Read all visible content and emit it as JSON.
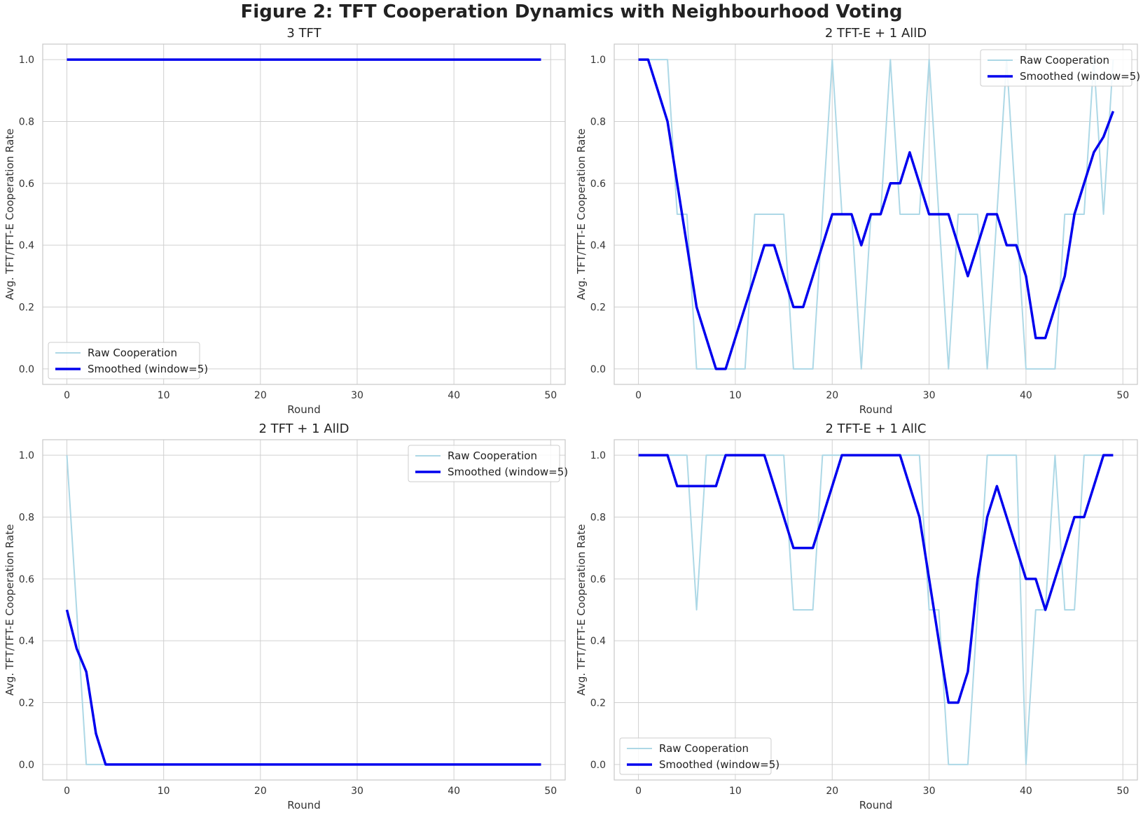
{
  "figure": {
    "title": "Figure 2: TFT Cooperation Dynamics with Neighbourhood Voting"
  },
  "colors": {
    "raw": "#add8e6",
    "smoothed": "#0000ee",
    "grid": "#d0d0d0",
    "frame": "#c8c8c8"
  },
  "chart_data": [
    {
      "type": "line",
      "title": "3 TFT",
      "xlabel": "Round",
      "ylabel": "Avg. TFT/TFT-E Cooperation Rate",
      "xlim": [
        -2.5,
        51.5
      ],
      "ylim": [
        -0.05,
        1.05
      ],
      "xticks": [
        0,
        10,
        20,
        30,
        40,
        50
      ],
      "yticks": [
        0.0,
        0.2,
        0.4,
        0.6,
        0.8,
        1.0
      ],
      "grid": true,
      "legend_position": "lower-left",
      "series": [
        {
          "name": "Raw Cooperation",
          "x": [
            0,
            49
          ],
          "y": [
            1.0,
            1.0
          ]
        },
        {
          "name": "Smoothed (window=5)",
          "x": [
            0,
            49
          ],
          "y": [
            1.0,
            1.0
          ]
        }
      ]
    },
    {
      "type": "line",
      "title": "2 TFT-E + 1 AllD",
      "xlabel": "Round",
      "ylabel": "Avg. TFT/TFT-E Cooperation Rate",
      "xlim": [
        -2.5,
        51.5
      ],
      "ylim": [
        -0.05,
        1.05
      ],
      "xticks": [
        0,
        10,
        20,
        30,
        40,
        50
      ],
      "yticks": [
        0.0,
        0.2,
        0.4,
        0.6,
        0.8,
        1.0
      ],
      "grid": true,
      "legend_position": "upper-right",
      "series": [
        {
          "name": "Raw Cooperation",
          "x": [
            0,
            1,
            2,
            3,
            4,
            5,
            6,
            7,
            8,
            9,
            10,
            11,
            12,
            13,
            14,
            15,
            16,
            17,
            18,
            19,
            20,
            21,
            22,
            23,
            24,
            25,
            26,
            27,
            28,
            29,
            30,
            31,
            32,
            33,
            34,
            35,
            36,
            37,
            38,
            39,
            40,
            41,
            42,
            43,
            44,
            45,
            46,
            47,
            48,
            49
          ],
          "y": [
            1,
            1,
            1,
            1,
            0.5,
            0.5,
            0,
            0,
            0,
            0,
            0,
            0,
            0.5,
            0.5,
            0.5,
            0.5,
            0,
            0,
            0,
            0.5,
            1,
            0.5,
            0.5,
            0,
            0.5,
            0.5,
            1,
            0.5,
            0.5,
            0.5,
            1,
            0.5,
            0,
            0.5,
            0.5,
            0.5,
            0,
            0.5,
            1,
            0.5,
            0,
            0,
            0,
            0,
            0.5,
            0.5,
            0.5,
            1,
            0.5,
            1
          ]
        },
        {
          "name": "Smoothed (window=5)",
          "x": [
            0,
            1,
            2,
            3,
            4,
            5,
            6,
            7,
            8,
            9,
            10,
            11,
            12,
            13,
            14,
            15,
            16,
            17,
            18,
            19,
            20,
            21,
            22,
            23,
            24,
            25,
            26,
            27,
            28,
            29,
            30,
            31,
            32,
            33,
            34,
            35,
            36,
            37,
            38,
            39,
            40,
            41,
            42,
            43,
            44,
            45,
            46,
            47,
            48,
            49
          ],
          "y": [
            1.0,
            1.0,
            0.9,
            0.8,
            0.6,
            0.4,
            0.2,
            0.1,
            0.0,
            0.0,
            0.1,
            0.2,
            0.3,
            0.4,
            0.4,
            0.3,
            0.2,
            0.2,
            0.3,
            0.4,
            0.5,
            0.5,
            0.5,
            0.4,
            0.5,
            0.5,
            0.6,
            0.6,
            0.7,
            0.6,
            0.5,
            0.5,
            0.5,
            0.4,
            0.3,
            0.4,
            0.5,
            0.5,
            0.4,
            0.4,
            0.3,
            0.1,
            0.1,
            0.2,
            0.3,
            0.5,
            0.6,
            0.7,
            0.75,
            0.833
          ]
        }
      ]
    },
    {
      "type": "line",
      "title": "2 TFT + 1 AllD",
      "xlabel": "Round",
      "ylabel": "Avg. TFT/TFT-E Cooperation Rate",
      "xlim": [
        -2.5,
        51.5
      ],
      "ylim": [
        -0.05,
        1.05
      ],
      "xticks": [
        0,
        10,
        20,
        30,
        40,
        50
      ],
      "yticks": [
        0.0,
        0.2,
        0.4,
        0.6,
        0.8,
        1.0
      ],
      "grid": true,
      "legend_position": "upper-right",
      "series": [
        {
          "name": "Raw Cooperation",
          "x": [
            0,
            1,
            2,
            49
          ],
          "y": [
            1.0,
            0.5,
            0.0,
            0.0
          ]
        },
        {
          "name": "Smoothed (window=5)",
          "x": [
            0,
            1,
            2,
            3,
            4,
            49
          ],
          "y": [
            0.5,
            0.375,
            0.3,
            0.1,
            0.0,
            0.0
          ]
        }
      ]
    },
    {
      "type": "line",
      "title": "2 TFT-E + 1 AllC",
      "xlabel": "Round",
      "ylabel": "Avg. TFT/TFT-E Cooperation Rate",
      "xlim": [
        -2.5,
        51.5
      ],
      "ylim": [
        -0.05,
        1.05
      ],
      "xticks": [
        0,
        10,
        20,
        30,
        40,
        50
      ],
      "yticks": [
        0.0,
        0.2,
        0.4,
        0.6,
        0.8,
        1.0
      ],
      "grid": true,
      "legend_position": "lower-left",
      "series": [
        {
          "name": "Raw Cooperation",
          "x": [
            0,
            1,
            2,
            3,
            4,
            5,
            6,
            7,
            8,
            9,
            10,
            11,
            12,
            13,
            14,
            15,
            16,
            17,
            18,
            19,
            20,
            21,
            22,
            23,
            24,
            25,
            26,
            27,
            28,
            29,
            30,
            31,
            32,
            33,
            34,
            35,
            36,
            37,
            38,
            39,
            40,
            41,
            42,
            43,
            44,
            45,
            46,
            47,
            48,
            49
          ],
          "y": [
            1,
            1,
            1,
            1,
            1,
            1,
            0.5,
            1,
            1,
            1,
            1,
            1,
            1,
            1,
            1,
            1,
            0.5,
            0.5,
            0.5,
            1,
            1,
            1,
            1,
            1,
            1,
            1,
            1,
            1,
            1,
            1,
            0.5,
            0.5,
            0,
            0,
            0,
            0.5,
            1,
            1,
            1,
            1,
            0,
            0.5,
            0.5,
            1,
            0.5,
            0.5,
            1,
            1,
            1,
            1
          ]
        },
        {
          "name": "Smoothed (window=5)",
          "x": [
            0,
            1,
            2,
            3,
            4,
            5,
            6,
            7,
            8,
            9,
            10,
            11,
            12,
            13,
            14,
            15,
            16,
            17,
            18,
            19,
            20,
            21,
            22,
            23,
            24,
            25,
            26,
            27,
            28,
            29,
            30,
            31,
            32,
            33,
            34,
            35,
            36,
            37,
            38,
            39,
            40,
            41,
            42,
            43,
            44,
            45,
            46,
            47,
            48,
            49
          ],
          "y": [
            1.0,
            1.0,
            1.0,
            1.0,
            0.9,
            0.9,
            0.9,
            0.9,
            0.9,
            1.0,
            1.0,
            1.0,
            1.0,
            1.0,
            0.9,
            0.8,
            0.7,
            0.7,
            0.7,
            0.8,
            0.9,
            1.0,
            1.0,
            1.0,
            1.0,
            1.0,
            1.0,
            1.0,
            0.9,
            0.8,
            0.6,
            0.4,
            0.2,
            0.2,
            0.3,
            0.6,
            0.8,
            0.9,
            0.8,
            0.7,
            0.6,
            0.6,
            0.5,
            0.6,
            0.7,
            0.8,
            0.8,
            0.9,
            1.0,
            1.0
          ]
        }
      ]
    }
  ]
}
